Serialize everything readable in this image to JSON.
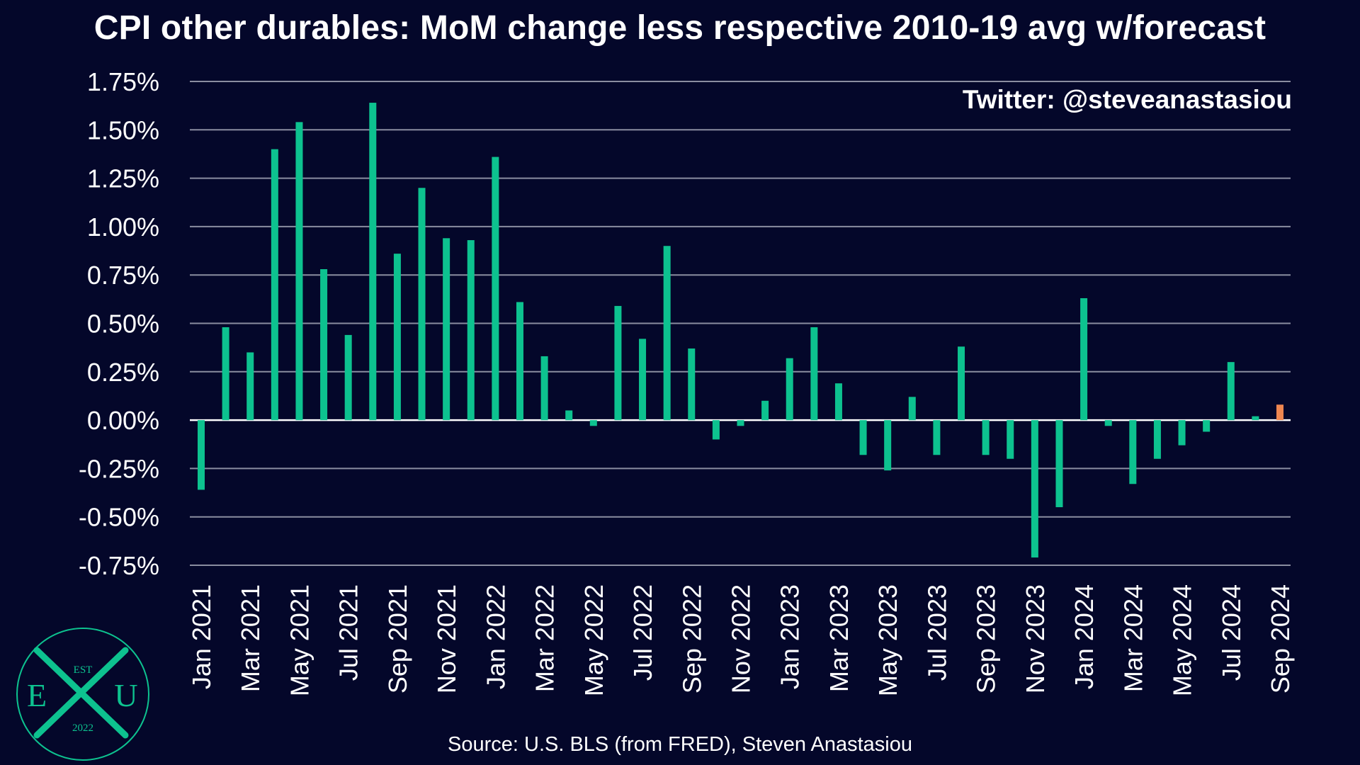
{
  "chart_data": {
    "type": "bar",
    "title": "CPI other durables: MoM change less respective 2010-19 avg w/forecast",
    "xlabel": "",
    "ylabel": "",
    "ylim": [
      -0.75,
      1.75
    ],
    "grid": true,
    "yticks": [
      "1.75%",
      "1.50%",
      "1.25%",
      "1.00%",
      "0.75%",
      "0.50%",
      "0.25%",
      "0.00%",
      "-0.25%",
      "-0.50%",
      "-0.75%"
    ],
    "ytick_values": [
      1.75,
      1.5,
      1.25,
      1.0,
      0.75,
      0.5,
      0.25,
      0.0,
      -0.25,
      -0.5,
      -0.75
    ],
    "xtick_labels": [
      "Jan 2021",
      "Mar 2021",
      "May 2021",
      "Jul 2021",
      "Sep 2021",
      "Nov 2021",
      "Jan 2022",
      "Mar 2022",
      "May 2022",
      "Jul 2022",
      "Sep 2022",
      "Nov 2022",
      "Jan 2023",
      "Mar 2023",
      "May 2023",
      "Jul 2023",
      "Sep 2023",
      "Nov 2023",
      "Jan 2024",
      "Mar 2024",
      "May 2024",
      "Jul 2024",
      "Sep 2024"
    ],
    "categories": [
      "Jan 2021",
      "Feb 2021",
      "Mar 2021",
      "Apr 2021",
      "May 2021",
      "Jun 2021",
      "Jul 2021",
      "Aug 2021",
      "Sep 2021",
      "Oct 2021",
      "Nov 2021",
      "Dec 2021",
      "Jan 2022",
      "Feb 2022",
      "Mar 2022",
      "Apr 2022",
      "May 2022",
      "Jun 2022",
      "Jul 2022",
      "Aug 2022",
      "Sep 2022",
      "Oct 2022",
      "Nov 2022",
      "Dec 2022",
      "Jan 2023",
      "Feb 2023",
      "Mar 2023",
      "Apr 2023",
      "May 2023",
      "Jun 2023",
      "Jul 2023",
      "Aug 2023",
      "Sep 2023",
      "Oct 2023",
      "Nov 2023",
      "Dec 2023",
      "Jan 2024",
      "Feb 2024",
      "Mar 2024",
      "Apr 2024",
      "May 2024",
      "Jun 2024",
      "Jul 2024",
      "Aug 2024",
      "Sep 2024"
    ],
    "values": [
      -0.36,
      0.48,
      0.35,
      1.4,
      1.54,
      0.78,
      0.44,
      1.64,
      0.86,
      1.2,
      0.94,
      0.93,
      1.36,
      0.61,
      0.33,
      0.05,
      -0.03,
      0.59,
      0.42,
      0.9,
      0.37,
      -0.1,
      -0.03,
      0.1,
      0.32,
      0.48,
      0.19,
      -0.18,
      -0.26,
      0.12,
      -0.18,
      0.38,
      -0.18,
      -0.2,
      -0.71,
      -0.45,
      0.63,
      -0.03,
      -0.33,
      -0.2,
      -0.13,
      -0.06,
      0.3,
      0.02,
      0.08
    ],
    "forecast_index": 44,
    "colors": {
      "actual": "#0dc28f",
      "forecast": "#ef8650",
      "grid": "#8a8da0",
      "background": "#04072a",
      "logo": "#0dc28f"
    }
  },
  "annotations": {
    "twitter": "Twitter: @steveanastasiou",
    "source": "Source: U.S. BLS (from FRED), Steven Anastasiou"
  },
  "logo": {
    "top": "EST",
    "left": "E",
    "right": "U",
    "bottom": "2022"
  }
}
